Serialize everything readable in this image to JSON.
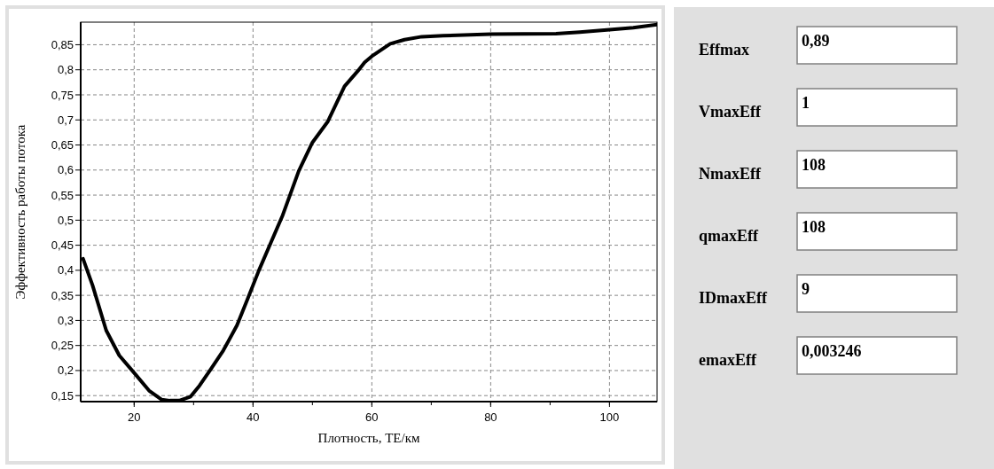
{
  "chart_data": [
    {
      "type": "line",
      "xlabel": "Плотность, ТЕ/км",
      "ylabel": "Эффективность работы потока",
      "x": [
        11.4,
        13,
        15.3,
        17.5,
        20.1,
        22.5,
        24.6,
        26,
        27.6,
        29.5,
        31,
        32.8,
        35,
        37.3,
        39,
        41,
        43,
        45,
        47.7,
        50,
        52.6,
        55.4,
        57.6,
        58.8,
        60,
        63.1,
        65.5,
        68.4,
        72,
        80,
        91,
        95,
        100,
        104,
        108
      ],
      "series": [
        {
          "color": "#000000",
          "values": [
            0.423,
            0.37,
            0.28,
            0.23,
            0.194,
            0.16,
            0.142,
            0.14,
            0.14,
            0.148,
            0.17,
            0.201,
            0.24,
            0.29,
            0.34,
            0.4,
            0.455,
            0.51,
            0.598,
            0.655,
            0.697,
            0.767,
            0.797,
            0.815,
            0.827,
            0.852,
            0.86,
            0.866,
            0.868,
            0.871,
            0.872,
            0.875,
            0.88,
            0.884,
            0.89
          ]
        }
      ],
      "xlim": [
        11,
        108
      ],
      "ylim": [
        0.138,
        0.895
      ],
      "xticks": [
        20,
        40,
        60,
        80,
        100
      ],
      "yticks": [
        {
          "value": 0.15,
          "label": "0,15"
        },
        {
          "value": 0.2,
          "label": "0,2"
        },
        {
          "value": 0.25,
          "label": "0,25"
        },
        {
          "value": 0.3,
          "label": "0,3"
        },
        {
          "value": 0.35,
          "label": "0,35"
        },
        {
          "value": 0.4,
          "label": "0,4"
        },
        {
          "value": 0.45,
          "label": "0,45"
        },
        {
          "value": 0.5,
          "label": "0,5"
        },
        {
          "value": 0.55,
          "label": "0,55"
        },
        {
          "value": 0.6,
          "label": "0,6"
        },
        {
          "value": 0.65,
          "label": "0,65"
        },
        {
          "value": 0.7,
          "label": "0,7"
        },
        {
          "value": 0.75,
          "label": "0,75"
        },
        {
          "value": 0.8,
          "label": "0,8"
        },
        {
          "value": 0.85,
          "label": "0,85"
        }
      ],
      "grid": true,
      "line_style": "solid",
      "marker": "none"
    },
    {
      "type": "other",
      "categories": [
        "Effmax",
        "VmaxEff",
        "NmaxEff",
        "qmaxEff",
        "IDmaxEff",
        "emaxEff"
      ],
      "value_labels": [
        "0,89",
        "1",
        "108",
        "108",
        "9",
        "0,003246"
      ]
    }
  ]
}
